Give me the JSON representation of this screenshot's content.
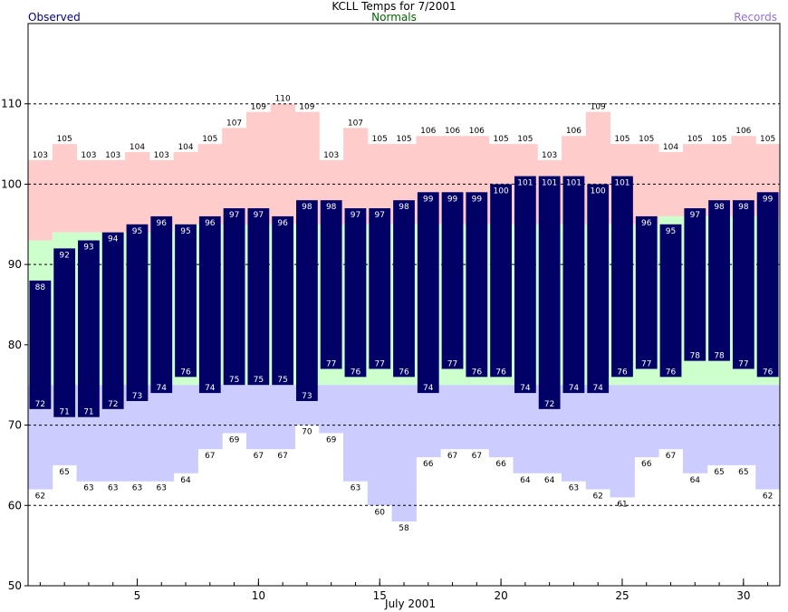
{
  "header": {
    "title": "KCLL Temps for 7/2001",
    "observed_label": "Observed",
    "normals_label": "Normals",
    "records_label": "Records"
  },
  "colors": {
    "observed": "#000066",
    "normals": "#ccffcc",
    "record_high": "#ffcccc",
    "record_low": "#ccccff",
    "observed_text": "#000080",
    "normals_text": "#006400",
    "records_text": "#9370db"
  },
  "chart_data": {
    "type": "bar",
    "title": "KCLL Temps for 7/2001",
    "xlabel": "July 2001",
    "ylabel": "",
    "ylim": [
      50,
      120
    ],
    "xlim": [
      0.5,
      31.5
    ],
    "yticks": [
      50,
      60,
      70,
      80,
      90,
      100,
      110
    ],
    "xticks": [
      5,
      10,
      15,
      20,
      25,
      30
    ],
    "grid": "dashed horizontal at 60, 70, 90, 100, 110",
    "legend": [
      "Observed",
      "Normals",
      "Records"
    ],
    "legend_placement": "top",
    "days": [
      1,
      2,
      3,
      4,
      5,
      6,
      7,
      8,
      9,
      10,
      11,
      12,
      13,
      14,
      15,
      16,
      17,
      18,
      19,
      20,
      21,
      22,
      23,
      24,
      25,
      26,
      27,
      28,
      29,
      30,
      31
    ],
    "series": [
      {
        "name": "Observed",
        "kind": "high",
        "values": [
          88,
          92,
          93,
          94,
          95,
          96,
          95,
          96,
          97,
          97,
          96,
          98,
          98,
          97,
          97,
          98,
          99,
          99,
          99,
          100,
          101,
          101,
          101,
          100,
          101,
          96,
          95,
          97,
          98,
          98,
          99
        ]
      },
      {
        "name": "Observed",
        "kind": "low",
        "values": [
          72,
          71,
          71,
          72,
          73,
          74,
          76,
          74,
          75,
          75,
          75,
          73,
          77,
          76,
          77,
          76,
          74,
          77,
          76,
          76,
          74,
          72,
          74,
          74,
          76,
          77,
          76,
          78,
          78,
          77,
          76
        ]
      },
      {
        "name": "Normals",
        "kind": "high",
        "values": [
          93,
          94,
          94,
          94,
          94,
          94,
          95,
          95,
          95,
          95,
          95,
          95,
          95,
          95,
          95,
          95,
          95,
          95,
          95,
          95,
          95,
          95,
          95,
          95,
          95,
          95,
          96,
          96,
          96,
          96,
          96
        ]
      },
      {
        "name": "Normals",
        "kind": "low",
        "values": [
          75,
          75,
          75,
          75,
          75,
          75,
          75,
          75,
          75,
          75,
          75,
          75,
          75,
          75,
          75,
          75,
          75,
          75,
          75,
          75,
          75,
          75,
          75,
          75,
          75,
          75,
          75,
          75,
          75,
          75,
          75
        ]
      },
      {
        "name": "Records",
        "kind": "high",
        "values": [
          103,
          105,
          103,
          103,
          104,
          103,
          104,
          105,
          107,
          109,
          110,
          109,
          103,
          107,
          105,
          105,
          106,
          106,
          106,
          105,
          105,
          103,
          106,
          109,
          105,
          105,
          104,
          105,
          105,
          106,
          105
        ]
      },
      {
        "name": "Records",
        "kind": "low",
        "values": [
          62,
          65,
          63,
          63,
          63,
          63,
          64,
          67,
          69,
          67,
          67,
          70,
          69,
          63,
          60,
          58,
          66,
          67,
          67,
          66,
          64,
          64,
          63,
          62,
          61,
          66,
          67,
          64,
          65,
          65,
          62
        ]
      }
    ]
  }
}
